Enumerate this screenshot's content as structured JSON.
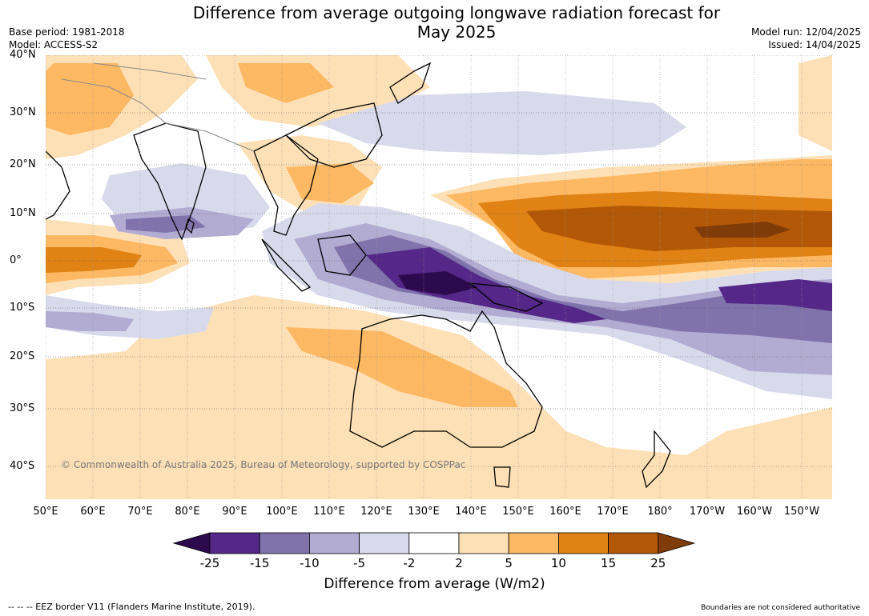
{
  "title": {
    "line1": "Difference from average outgoing longwave radiation forecast for",
    "line2": "May 2025"
  },
  "meta_left": {
    "base_period": "Base period: 1981-2018",
    "model": "Model: ACCESS-S2"
  },
  "meta_right": {
    "model_run": "Model run: 12/04/2025",
    "issued": "Issued: 14/04/2025"
  },
  "lat_labels": [
    "40°N",
    "30°N",
    "20°N",
    "10°N",
    "0°",
    "10°S",
    "20°S",
    "30°S",
    "40°S"
  ],
  "lon_labels": [
    "50°E",
    "60°E",
    "70°E",
    "80°E",
    "90°E",
    "100°E",
    "110°E",
    "120°E",
    "130°E",
    "140°E",
    "150°E",
    "160°E",
    "170°E",
    "180°",
    "170°W",
    "160°W",
    "150°W"
  ],
  "copyright": "© Commonwealth of Australia 2025, Bureau of Meteorology, supported by COSPPac",
  "colorbar": {
    "ticks": [
      "-25",
      "-15",
      "-10",
      "-5",
      "-2",
      "2",
      "5",
      "10",
      "15",
      "25"
    ],
    "colors": [
      "#2d0a4e",
      "#542788",
      "#8073ac",
      "#b2abd2",
      "#d8daeb",
      "#ffffff",
      "#fee0b6",
      "#fdb863",
      "#e08214",
      "#b35806",
      "#7f3b08"
    ],
    "title": "Difference from average (W/m2)"
  },
  "footer": {
    "eez_note": "--  --  -- EEZ border V11 (Flanders Marine Institute, 2019).",
    "boundaries_note": "Boundaries are not considered authoritative"
  },
  "colors": {
    "grid": "#555555",
    "coast": "#000000",
    "border": "#888888"
  }
}
